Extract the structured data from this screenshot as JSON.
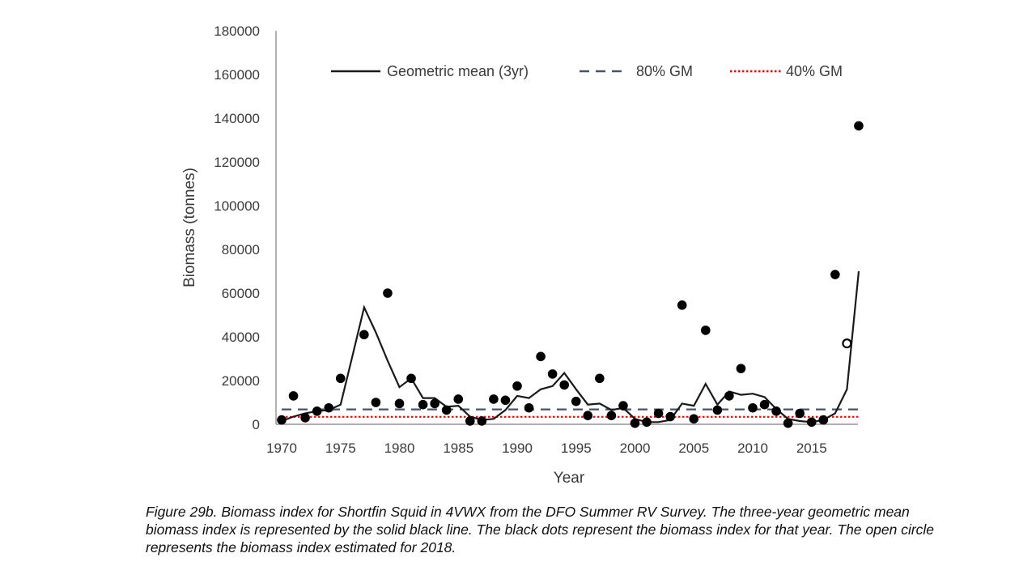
{
  "chart_data": {
    "type": "scatter",
    "xlabel": "Year",
    "ylabel": "Biomass (tonnes)",
    "xlim": [
      1970,
      2020
    ],
    "ylim": [
      0,
      180000
    ],
    "x_ticks": [
      1970,
      1975,
      1980,
      1985,
      1990,
      1995,
      2000,
      2005,
      2010,
      2015
    ],
    "y_ticks": [
      0,
      20000,
      40000,
      60000,
      80000,
      100000,
      120000,
      140000,
      160000,
      180000
    ],
    "grid": false,
    "legend_placement": "top",
    "legend": [
      {
        "label": "Geometric mean (3yr)",
        "style": "solid",
        "color": "#1a1a1a"
      },
      {
        "label": "80% GM",
        "style": "dashed",
        "color": "#44546a"
      },
      {
        "label": "40% GM",
        "style": "dotted",
        "color": "#ff0000"
      }
    ],
    "series": [
      {
        "name": "Biomass index",
        "kind": "points",
        "color": "#000000",
        "points": [
          [
            1970,
            2000
          ],
          [
            1971,
            13000
          ],
          [
            1972,
            3000
          ],
          [
            1973,
            6000
          ],
          [
            1974,
            7500
          ],
          [
            1975,
            21000
          ],
          [
            1977,
            41000
          ],
          [
            1978,
            10000
          ],
          [
            1979,
            60000
          ],
          [
            1980,
            9500
          ],
          [
            1981,
            21000
          ],
          [
            1982,
            9000
          ],
          [
            1983,
            9500
          ],
          [
            1984,
            6500
          ],
          [
            1985,
            11500
          ],
          [
            1986,
            1500
          ],
          [
            1987,
            1500
          ],
          [
            1988,
            11500
          ],
          [
            1989,
            11000
          ],
          [
            1990,
            17500
          ],
          [
            1991,
            7500
          ],
          [
            1992,
            31000
          ],
          [
            1993,
            23000
          ],
          [
            1994,
            18000
          ],
          [
            1995,
            10500
          ],
          [
            1996,
            4000
          ],
          [
            1997,
            21000
          ],
          [
            1998,
            4000
          ],
          [
            1999,
            8500
          ],
          [
            2000,
            500
          ],
          [
            2001,
            1000
          ],
          [
            2002,
            5000
          ],
          [
            2003,
            3500
          ],
          [
            2004,
            54500
          ],
          [
            2005,
            2500
          ],
          [
            2006,
            43000
          ],
          [
            2007,
            6500
          ],
          [
            2008,
            13000
          ],
          [
            2009,
            25500
          ],
          [
            2010,
            7500
          ],
          [
            2011,
            9000
          ],
          [
            2012,
            6000
          ],
          [
            2013,
            500
          ],
          [
            2014,
            5000
          ],
          [
            2015,
            1000
          ],
          [
            2016,
            2000
          ],
          [
            2017,
            68500
          ],
          [
            2019,
            136500
          ]
        ]
      },
      {
        "name": "Estimated 2018",
        "kind": "open-point",
        "color": "#000000",
        "points": [
          [
            2018,
            37000
          ]
        ]
      },
      {
        "name": "Geometric mean (3yr)",
        "kind": "line",
        "style": "solid",
        "color": "#1a1a1a",
        "points": [
          [
            1970,
            1500
          ],
          [
            1971,
            3500
          ],
          [
            1972,
            5000
          ],
          [
            1973,
            6000
          ],
          [
            1974,
            6500
          ],
          [
            1975,
            9000
          ],
          [
            1976,
            31000
          ],
          [
            1977,
            53500
          ],
          [
            1978,
            42000
          ],
          [
            1979,
            29000
          ],
          [
            1980,
            17000
          ],
          [
            1981,
            21000
          ],
          [
            1982,
            12000
          ],
          [
            1983,
            12000
          ],
          [
            1984,
            8000
          ],
          [
            1985,
            8500
          ],
          [
            1986,
            3500
          ],
          [
            1987,
            2000
          ],
          [
            1988,
            2500
          ],
          [
            1989,
            6500
          ],
          [
            1990,
            13000
          ],
          [
            1991,
            12000
          ],
          [
            1992,
            16000
          ],
          [
            1993,
            17500
          ],
          [
            1994,
            23500
          ],
          [
            1995,
            16000
          ],
          [
            1996,
            9000
          ],
          [
            1997,
            9500
          ],
          [
            1998,
            6500
          ],
          [
            1999,
            7500
          ],
          [
            2000,
            2500
          ],
          [
            2001,
            1000
          ],
          [
            2002,
            1000
          ],
          [
            2003,
            2000
          ],
          [
            2004,
            9500
          ],
          [
            2005,
            8500
          ],
          [
            2006,
            18500
          ],
          [
            2007,
            9000
          ],
          [
            2008,
            15000
          ],
          [
            2009,
            13500
          ],
          [
            2010,
            14000
          ],
          [
            2011,
            12500
          ],
          [
            2012,
            7000
          ],
          [
            2013,
            2500
          ],
          [
            2014,
            1500
          ],
          [
            2015,
            1000
          ],
          [
            2016,
            2000
          ],
          [
            2017,
            5000
          ],
          [
            2018,
            16000
          ],
          [
            2019,
            70000
          ]
        ]
      },
      {
        "name": "80% GM",
        "kind": "line",
        "style": "dashed",
        "color": "#44546a",
        "points": [
          [
            1970,
            6800
          ],
          [
            2019,
            6800
          ]
        ]
      },
      {
        "name": "40% GM",
        "kind": "line",
        "style": "dotted",
        "color": "#ff0000",
        "points": [
          [
            1970,
            3400
          ],
          [
            2019,
            3400
          ]
        ]
      }
    ]
  },
  "caption": "Figure 29b. Biomass index for Shortfin Squid in 4VWX from the DFO Summer RV Survey. The three-year geometric mean biomass index is represented by the solid black line. The black dots represent the biomass index for that year. The open circle represents the biomass index estimated for 2018."
}
